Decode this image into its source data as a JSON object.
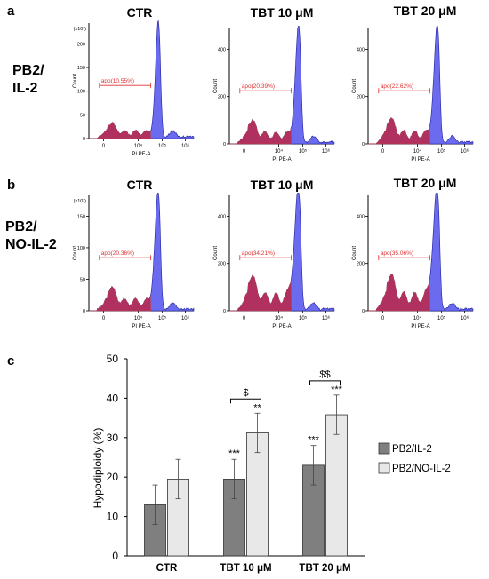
{
  "panel_labels": {
    "a": "a",
    "b": "b",
    "c": "c"
  },
  "row_labels": [
    {
      "line1": "PB2/",
      "line2": "IL-2"
    },
    {
      "line1": "PB2/",
      "line2": "NO-IL-2"
    }
  ],
  "column_titles": [
    "CTR",
    "TBT 10 μM",
    "TBT 20 μM"
  ],
  "histogram_common": {
    "xlabel": "PI PE-A",
    "ylabel": "Count",
    "xticks": [
      "0",
      "10⁴",
      "10⁵",
      "10⁶"
    ],
    "fill_main": "#6b6bf0",
    "fill_apo": "#b03060",
    "gate_color": "#e03030"
  },
  "chart_data": [
    {
      "type": "histogram",
      "row": "PB2/IL-2",
      "condition": "CTR",
      "gate_label": "apo(10.55%)",
      "apo_percent": 10.55,
      "y_multiplier_label": "(x10¹)",
      "yticks": [
        "0",
        "50",
        "100",
        "150",
        "200"
      ]
    },
    {
      "type": "histogram",
      "row": "PB2/IL-2",
      "condition": "TBT 10 μM",
      "gate_label": "apo(20.39%)",
      "apo_percent": 20.39,
      "y_multiplier_label": "",
      "yticks": [
        "0",
        "200",
        "400"
      ]
    },
    {
      "type": "histogram",
      "row": "PB2/IL-2",
      "condition": "TBT 20 μM",
      "gate_label": "apo(22.62%)",
      "apo_percent": 22.62,
      "y_multiplier_label": "",
      "yticks": [
        "0",
        "200",
        "400"
      ]
    },
    {
      "type": "histogram",
      "row": "PB2/NO-IL-2",
      "condition": "CTR",
      "gate_label": "apo(20.36%)",
      "apo_percent": 20.36,
      "y_multiplier_label": "(x10¹)",
      "yticks": [
        "0",
        "50",
        "100",
        "150"
      ]
    },
    {
      "type": "histogram",
      "row": "PB2/NO-IL-2",
      "condition": "TBT 10 μM",
      "gate_label": "apo(34.21%)",
      "apo_percent": 34.21,
      "y_multiplier_label": "",
      "yticks": [
        "0",
        "200",
        "400"
      ]
    },
    {
      "type": "histogram",
      "row": "PB2/NO-IL-2",
      "condition": "TBT 20 μM",
      "gate_label": "apo(35.06%)",
      "apo_percent": 35.06,
      "y_multiplier_label": "",
      "yticks": [
        "0",
        "200",
        "400"
      ]
    },
    {
      "type": "bar",
      "categories": [
        "CTR",
        "TBT 10 μM",
        "TBT 20 μM"
      ],
      "series": [
        {
          "name": "PB2/IL-2",
          "color": "#7f7f7f",
          "values": [
            13.0,
            19.5,
            23.0
          ],
          "errors": [
            5.0,
            5.0,
            5.0
          ],
          "marks": [
            "",
            "***",
            "***"
          ]
        },
        {
          "name": "PB2/NO-IL-2",
          "color": "#e8e8e8",
          "values": [
            19.5,
            31.2,
            35.8
          ],
          "errors": [
            5.0,
            5.0,
            5.0
          ],
          "marks": [
            "",
            "**",
            "***"
          ]
        }
      ],
      "brackets": [
        "",
        "$",
        "$$"
      ],
      "ylabel": "Hypodiploidy (%)",
      "ylim": [
        0,
        50
      ],
      "yticks": [
        0,
        10,
        20,
        30,
        40,
        50
      ],
      "legend_position": "right",
      "grid": false
    }
  ]
}
